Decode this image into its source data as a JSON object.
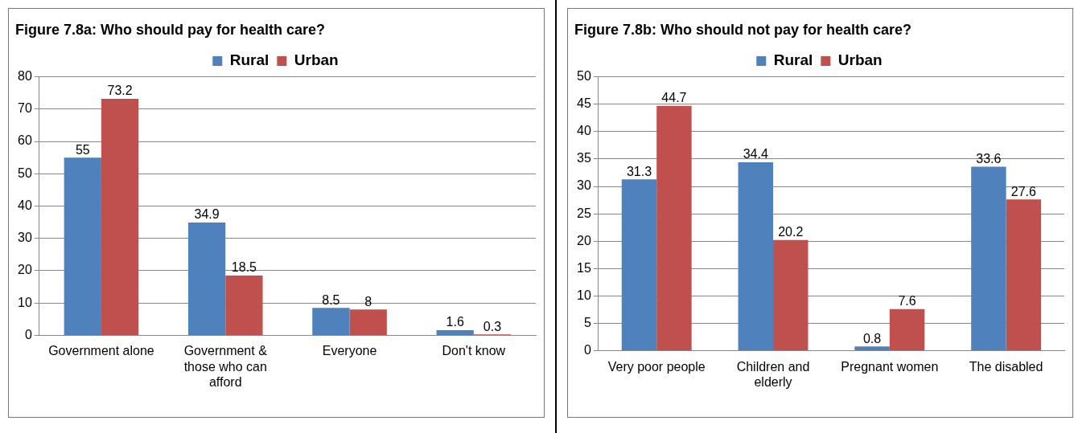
{
  "chart_data": [
    {
      "type": "bar",
      "title": "Figure 7.8a: Who should pay for health care?",
      "categories": [
        "Government alone",
        "Government & those who can afford",
        "Everyone",
        "Don't know"
      ],
      "series": [
        {
          "name": "Rural",
          "color": "#4f81bd",
          "values": [
            55,
            34.9,
            8.5,
            1.6
          ]
        },
        {
          "name": "Urban",
          "color": "#c0504d",
          "values": [
            73.2,
            18.5,
            8,
            0.3
          ]
        }
      ],
      "ylim": [
        0,
        80
      ],
      "yticks": [
        0,
        10,
        20,
        30,
        40,
        50,
        60,
        70,
        80
      ],
      "grid": "y",
      "legend": "top right",
      "data_labels": true
    },
    {
      "type": "bar",
      "title": "Figure 7.8b: Who should not pay for health care?",
      "categories": [
        "Very poor people",
        "Children and elderly",
        "Pregnant women",
        "The disabled"
      ],
      "series": [
        {
          "name": "Rural",
          "color": "#4f81bd",
          "values": [
            31.3,
            34.4,
            0.8,
            33.6
          ]
        },
        {
          "name": "Urban",
          "color": "#c0504d",
          "values": [
            44.7,
            20.2,
            7.6,
            27.6
          ]
        }
      ],
      "ylim": [
        0,
        50
      ],
      "yticks": [
        0,
        5,
        10,
        15,
        20,
        25,
        30,
        35,
        40,
        45,
        50
      ],
      "grid": "y",
      "legend": "top right",
      "data_labels": true
    }
  ]
}
